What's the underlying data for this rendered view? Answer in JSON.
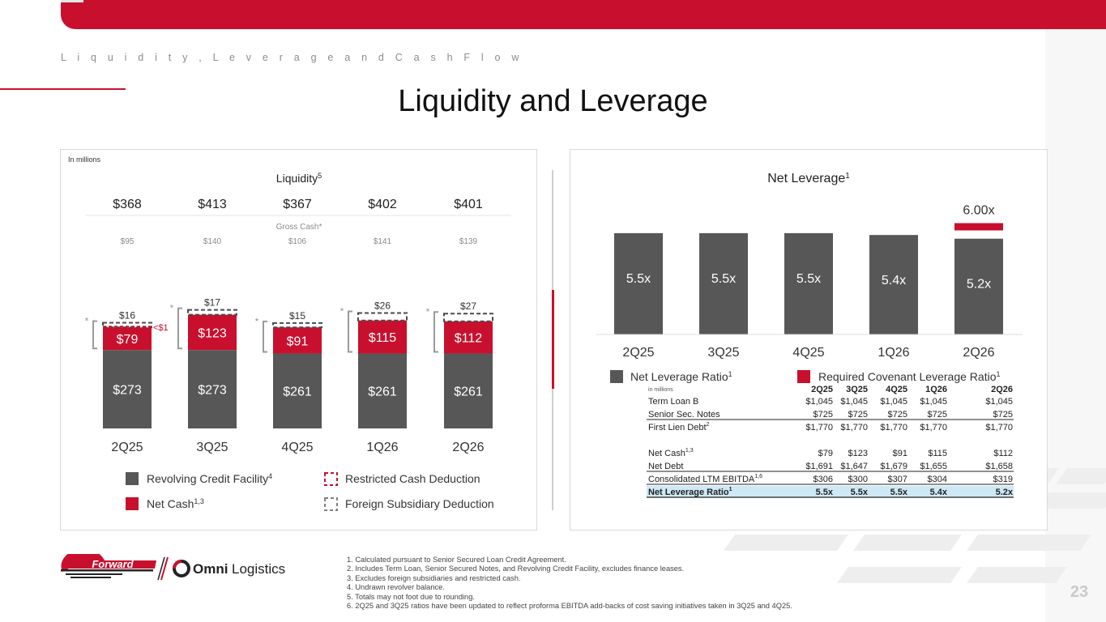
{
  "header": {
    "subtitle": "L i q u i d i t y ,   L e v e r a g e   a n d   C a s h   F l o w",
    "title": "Liquidity and Leverage"
  },
  "colors": {
    "red": "#c8102e",
    "dark_gray": "#575757",
    "mid_gray": "#808080",
    "light_blue": "#cfe8f5"
  },
  "liquidity": {
    "units": "In millions",
    "title": "Liquidity",
    "title_sup": "5",
    "gross_cash_label": "Gross Cash*",
    "legend": [
      {
        "label": "Revolving Credit Facility",
        "sup": "4",
        "swatch": "dark"
      },
      {
        "label": "Net Cash",
        "sup": "1,3",
        "swatch": "red"
      },
      {
        "label": "Restricted Cash Deduction",
        "sup": "",
        "swatch": "dashed-red"
      },
      {
        "label": "Foreign Subsidiary Deduction",
        "sup": "",
        "swatch": "dashed-gray"
      }
    ]
  },
  "leverage": {
    "title": "Net Leverage",
    "title_sup": "1",
    "covenant_value": "6.00x",
    "legend": [
      {
        "label": "Net Leverage Ratio",
        "sup": "1"
      },
      {
        "label": "Required Covenant Leverage Ratio",
        "sup": "1"
      }
    ]
  },
  "chart_data": [
    {
      "type": "bar",
      "title": "Liquidity",
      "categories": [
        "2Q25",
        "3Q25",
        "4Q25",
        "1Q26",
        "2Q26"
      ],
      "totals": [
        "$368",
        "$413",
        "$367",
        "$402",
        "$401"
      ],
      "gross_cash": [
        "$95",
        "$140",
        "$106",
        "$141",
        "$139"
      ],
      "series": [
        {
          "name": "Revolving Credit Facility",
          "values": [
            273,
            273,
            261,
            261,
            261
          ],
          "labels": [
            "$273",
            "$273",
            "$261",
            "$261",
            "$261"
          ]
        },
        {
          "name": "Net Cash",
          "values": [
            79,
            123,
            91,
            115,
            112
          ],
          "labels": [
            "$79",
            "$123",
            "$91",
            "$115",
            "$112"
          ]
        },
        {
          "name": "Foreign Subsidiary Deduction",
          "values": [
            16,
            17,
            15,
            26,
            27
          ],
          "labels": [
            "$16",
            "$17",
            "$15",
            "$26",
            "$27"
          ]
        },
        {
          "name": "Restricted Cash Deduction",
          "values": [
            0.5,
            0,
            0,
            0,
            0
          ],
          "labels": [
            "<$1",
            "",
            "",
            "",
            ""
          ]
        }
      ],
      "asterisk": "*"
    },
    {
      "type": "bar",
      "title": "Net Leverage",
      "categories": [
        "2Q25",
        "3Q25",
        "4Q25",
        "1Q26",
        "2Q26"
      ],
      "series": [
        {
          "name": "Net Leverage Ratio",
          "values": [
            5.5,
            5.5,
            5.5,
            5.4,
            5.2
          ],
          "labels": [
            "5.5x",
            "5.5x",
            "5.5x",
            "5.4x",
            "5.2x"
          ]
        },
        {
          "name": "Required Covenant Leverage Ratio",
          "values": [
            null,
            null,
            null,
            null,
            6.0
          ],
          "labels": [
            "",
            "",
            "",
            "",
            "6.00x"
          ]
        }
      ]
    },
    {
      "type": "table",
      "units": "in millions",
      "columns": [
        "2Q25",
        "3Q25",
        "4Q25",
        "1Q26",
        "2Q26"
      ],
      "rows": [
        {
          "label": "Term Loan B",
          "sup": "",
          "values": [
            "$1,045",
            "$1,045",
            "$1,045",
            "$1,045",
            "$1,045"
          ],
          "style": "normal"
        },
        {
          "label": "Senior Sec. Notes",
          "sup": "",
          "values": [
            "$725",
            "$725",
            "$725",
            "$725",
            "$725"
          ],
          "style": "underline"
        },
        {
          "label": "First Lien Debt",
          "sup": "2",
          "values": [
            "$1,770",
            "$1,770",
            "$1,770",
            "$1,770",
            "$1,770"
          ],
          "style": "normal"
        },
        {
          "label": "Net Cash",
          "sup": "1,3",
          "values": [
            "$79",
            "$123",
            "$91",
            "$115",
            "$112"
          ],
          "style": "gap"
        },
        {
          "label": "Net Debt",
          "sup": "",
          "values": [
            "$1,691",
            "$1,647",
            "$1,679",
            "$1,655",
            "$1,658"
          ],
          "style": "underline"
        },
        {
          "label": "Consolidated LTM EBITDA",
          "sup": "1,6",
          "values": [
            "$306",
            "$300",
            "$307",
            "$304",
            "$319"
          ],
          "style": "underline"
        },
        {
          "label": "Net Leverage Ratio",
          "sup": "1",
          "values": [
            "5.5x",
            "5.5x",
            "5.5x",
            "5.4x",
            "5.2x"
          ],
          "style": "highlight"
        }
      ]
    }
  ],
  "logos": {
    "forward": "Forward",
    "omni_bold": "Omni",
    "omni_light": "Logistics"
  },
  "footnotes": [
    "1.  Calculated pursuant to Senior Secured Loan Credit Agreement.",
    "2.  Includes Term Loan, Senior Secured Notes, and Revolving Credit Facility, excludes finance leases.",
    "3.  Excludes foreign subsidiaries and restricted cash.",
    "4.  Undrawn revolver balance.",
    "5.  Totals may not foot due to rounding.",
    "6.  2Q25 and 3Q25 ratios have been updated to reflect proforma EBITDA add-backs of cost saving initiatives taken in 3Q25 and 4Q25."
  ],
  "page_number": "23"
}
